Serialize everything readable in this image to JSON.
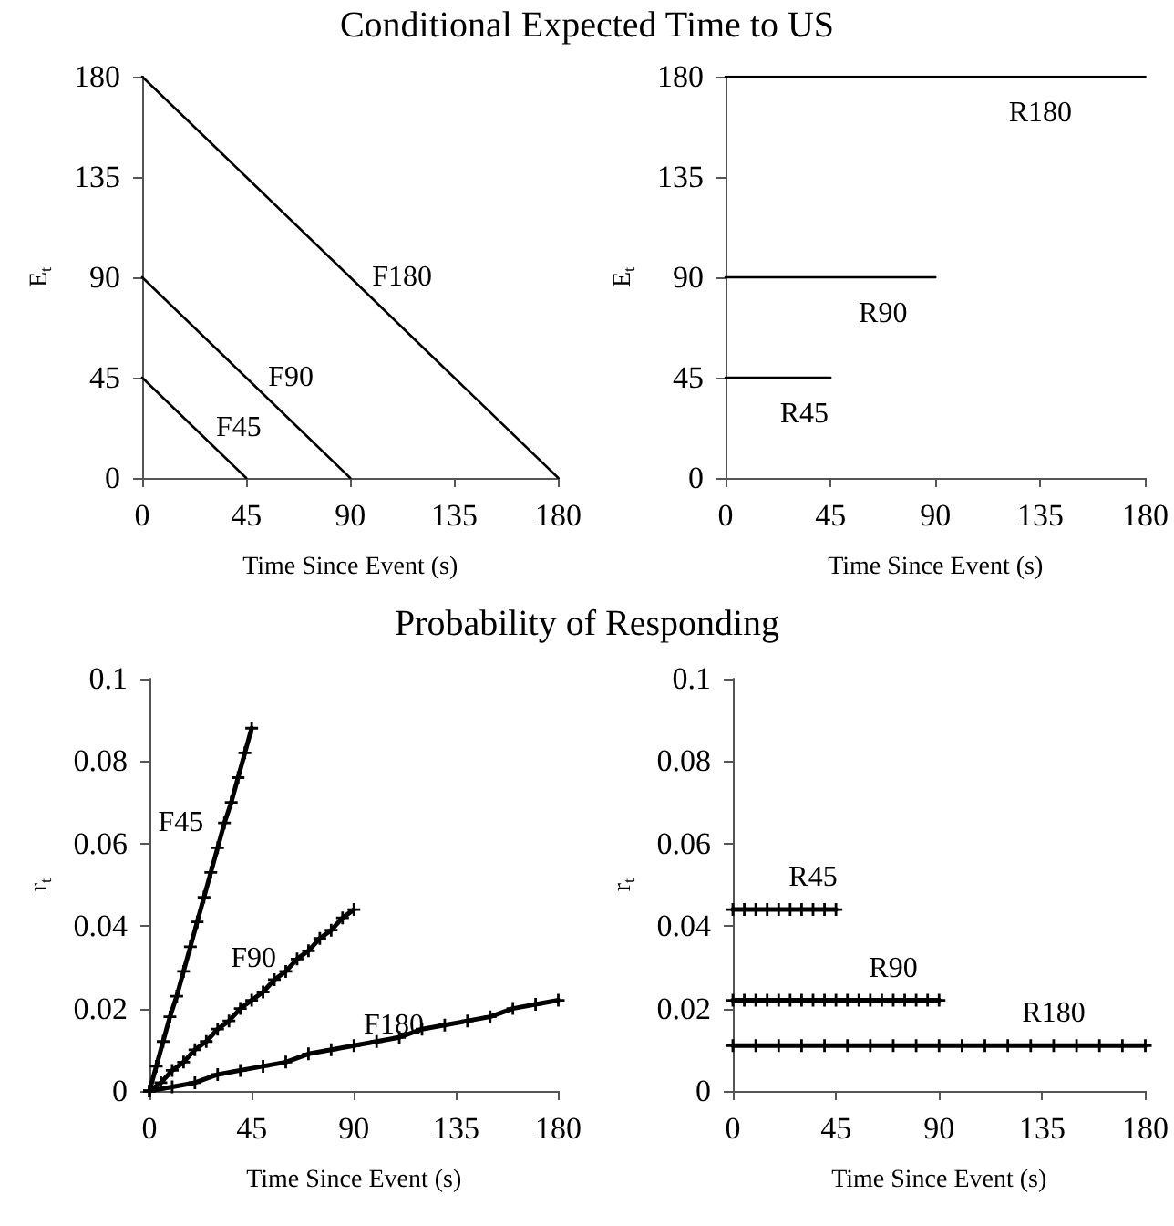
{
  "chart_data": [
    {
      "type": "line",
      "title": "Conditional Expected Time to US",
      "xlabel": "Time Since Event (s)",
      "ylabel": "E$_{t}$",
      "xlim": [
        0,
        180
      ],
      "xticks": [
        0,
        45,
        90,
        135,
        180
      ],
      "ylim": [
        0,
        180
      ],
      "yticks": [
        0,
        45,
        90,
        135,
        180
      ],
      "marker": "none",
      "series": [
        {
          "name": "F45",
          "color": "#000000",
          "x": [
            0,
            11.25,
            22.5,
            33.75,
            45
          ],
          "values": [
            45,
            33.75,
            22.5,
            11.25,
            0
          ]
        },
        {
          "name": "F90",
          "color": "#000000",
          "x": [
            0,
            22.5,
            45,
            67.5,
            90
          ],
          "values": [
            90,
            67.5,
            45,
            22.5,
            0
          ]
        },
        {
          "name": "F180",
          "color": "#000000",
          "x": [
            0,
            45,
            90,
            135,
            180
          ],
          "values": [
            180,
            135,
            90,
            45,
            0
          ]
        }
      ]
    },
    {
      "type": "line",
      "xlabel": "Time Since Event (s)",
      "ylabel": "E$_{t}$",
      "xlim": [
        0,
        180
      ],
      "xticks": [
        0,
        45,
        90,
        135,
        180
      ],
      "ylim": [
        0,
        180
      ],
      "yticks": [
        0,
        45,
        90,
        135,
        180
      ],
      "marker": "none",
      "series": [
        {
          "name": "R45",
          "color": "#000000",
          "x": [
            0,
            11.25,
            22.5,
            33.75,
            45
          ],
          "values": [
            45,
            45,
            45,
            45,
            45
          ]
        },
        {
          "name": "R90",
          "color": "#000000",
          "x": [
            0,
            22.5,
            45,
            67.5,
            90
          ],
          "values": [
            90,
            90,
            90,
            90,
            90
          ]
        },
        {
          "name": "R180",
          "color": "#000000",
          "x": [
            0,
            45,
            90,
            135,
            180
          ],
          "values": [
            180,
            180,
            180,
            180,
            180
          ]
        }
      ]
    },
    {
      "type": "line",
      "title": "Probability of Responding",
      "xlabel": "Time Since Event (s)",
      "ylabel": "r$_{t}$",
      "xlim": [
        0,
        180
      ],
      "xticks": [
        0,
        45,
        90,
        135,
        180
      ],
      "ylim": [
        0,
        0.1
      ],
      "yticks": [
        0,
        0.02,
        0.04,
        0.06,
        0.08,
        0.1
      ],
      "marker": "cross",
      "series": [
        {
          "name": "F45",
          "color": "#000000",
          "x": [
            0,
            3,
            6,
            9,
            12,
            15,
            18,
            21,
            24,
            27,
            30,
            33,
            36,
            39,
            42,
            45
          ],
          "values": [
            0,
            0.006,
            0.012,
            0.018,
            0.023,
            0.029,
            0.035,
            0.041,
            0.047,
            0.053,
            0.059,
            0.065,
            0.07,
            0.076,
            0.082,
            0.088
          ]
        },
        {
          "name": "F90",
          "color": "#000000",
          "x": [
            0,
            5,
            10,
            15,
            20,
            25,
            30,
            35,
            40,
            45,
            50,
            55,
            60,
            65,
            70,
            75,
            80,
            85,
            90
          ],
          "values": [
            0,
            0.002,
            0.005,
            0.007,
            0.01,
            0.012,
            0.015,
            0.017,
            0.02,
            0.022,
            0.024,
            0.027,
            0.029,
            0.032,
            0.034,
            0.037,
            0.039,
            0.042,
            0.044
          ]
        },
        {
          "name": "F180",
          "color": "#000000",
          "x": [
            0,
            10,
            20,
            30,
            40,
            50,
            60,
            70,
            80,
            90,
            100,
            110,
            120,
            130,
            140,
            150,
            160,
            170,
            180
          ],
          "values": [
            0,
            0.001,
            0.002,
            0.004,
            0.005,
            0.006,
            0.007,
            0.009,
            0.01,
            0.011,
            0.012,
            0.013,
            0.015,
            0.016,
            0.017,
            0.018,
            0.02,
            0.021,
            0.022
          ]
        }
      ]
    },
    {
      "type": "line",
      "xlabel": "Time Since Event (s)",
      "ylabel": "r$_{t}$",
      "xlim": [
        0,
        180
      ],
      "xticks": [
        0,
        45,
        90,
        135,
        180
      ],
      "ylim": [
        0,
        0.1
      ],
      "yticks": [
        0,
        0.02,
        0.04,
        0.06,
        0.08,
        0.1
      ],
      "marker": "cross",
      "series": [
        {
          "name": "R45",
          "color": "#000000",
          "x": [
            0,
            5,
            10,
            15,
            20,
            25,
            30,
            35,
            40,
            45
          ],
          "values": [
            0.044,
            0.044,
            0.044,
            0.044,
            0.044,
            0.044,
            0.044,
            0.044,
            0.044,
            0.044
          ]
        },
        {
          "name": "R90",
          "color": "#000000",
          "x": [
            0,
            5,
            10,
            15,
            20,
            25,
            30,
            35,
            40,
            45,
            50,
            55,
            60,
            65,
            70,
            75,
            80,
            85,
            90
          ],
          "values": [
            0.022,
            0.022,
            0.022,
            0.022,
            0.022,
            0.022,
            0.022,
            0.022,
            0.022,
            0.022,
            0.022,
            0.022,
            0.022,
            0.022,
            0.022,
            0.022,
            0.022,
            0.022,
            0.022
          ]
        },
        {
          "name": "R180",
          "color": "#000000",
          "x": [
            0,
            10,
            20,
            30,
            40,
            50,
            60,
            70,
            80,
            90,
            100,
            110,
            120,
            130,
            140,
            150,
            160,
            170,
            180
          ],
          "values": [
            0.011,
            0.011,
            0.011,
            0.011,
            0.011,
            0.011,
            0.011,
            0.011,
            0.011,
            0.011,
            0.011,
            0.011,
            0.011,
            0.011,
            0.011,
            0.011,
            0.011,
            0.011,
            0.011
          ]
        }
      ]
    }
  ]
}
